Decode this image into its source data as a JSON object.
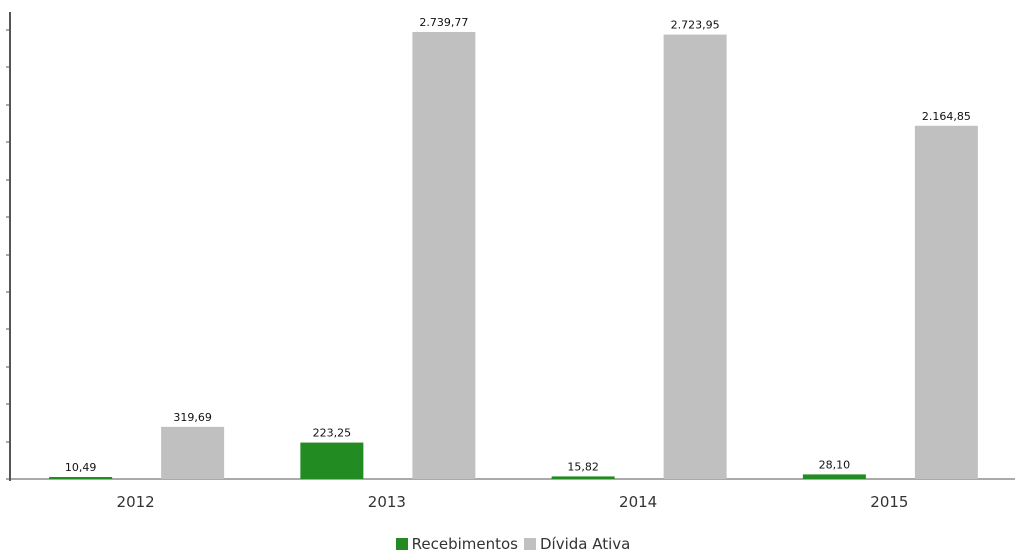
{
  "chart_data": {
    "type": "bar",
    "categories": [
      "2012",
      "2013",
      "2014",
      "2015"
    ],
    "series": [
      {
        "name": "Recebimentos",
        "color": "#228B22",
        "values": [
          10.49,
          223.25,
          15.82,
          28.1
        ],
        "labels": [
          "10,49",
          "223,25",
          "15,82",
          "28,10"
        ]
      },
      {
        "name": "Dívida Ativa",
        "color": "#C0C0C0",
        "values": [
          319.69,
          2739.77,
          2723.95,
          2164.85
        ],
        "labels": [
          "319,69",
          "2.739,77",
          "2.723,95",
          "2.164,85"
        ]
      }
    ],
    "ylim": [
      0,
      2850
    ],
    "y_axis_ticks_labeled": false,
    "legend_position": "bottom-center",
    "grid": false
  }
}
